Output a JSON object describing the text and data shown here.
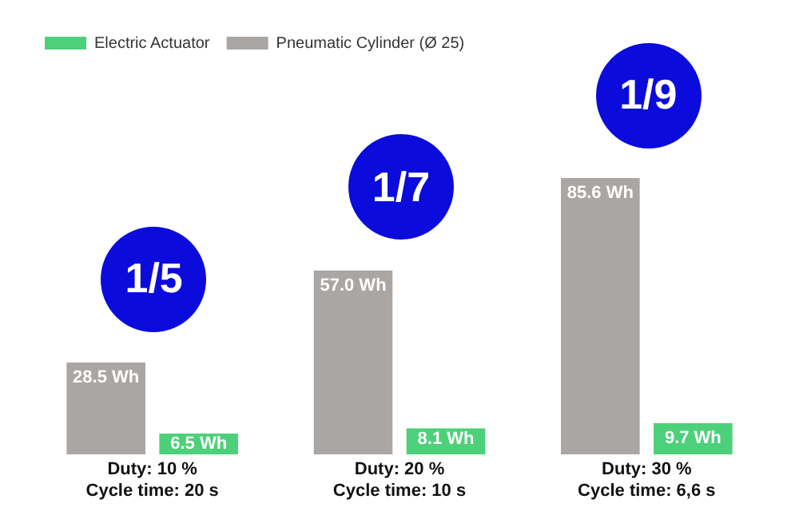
{
  "chart_data": {
    "type": "bar",
    "categories": [
      "Duty: 10 %\nCycle time: 20 s",
      "Duty: 20 %\nCycle time: 10 s",
      "Duty: 30 %\nCycle time: 6,6 s"
    ],
    "series": [
      {
        "name": "Pneumatic Cylinder (Ø 25)",
        "color": "#aaa6a4",
        "values": [
          28.5,
          57.0,
          85.6
        ],
        "value_labels": [
          "28.5 Wh",
          "57.0 Wh",
          "85.6 Wh"
        ]
      },
      {
        "name": "Electric Actuator",
        "color": "#4dd07a",
        "values": [
          6.5,
          8.1,
          9.7
        ],
        "value_labels": [
          "6.5 Wh",
          "8.1 Wh",
          "9.7 Wh"
        ]
      }
    ],
    "annotations": [
      "1/5",
      "1/7",
      "1/9"
    ],
    "legend": "top left",
    "grid": false,
    "tick_labels": "x"
  }
}
